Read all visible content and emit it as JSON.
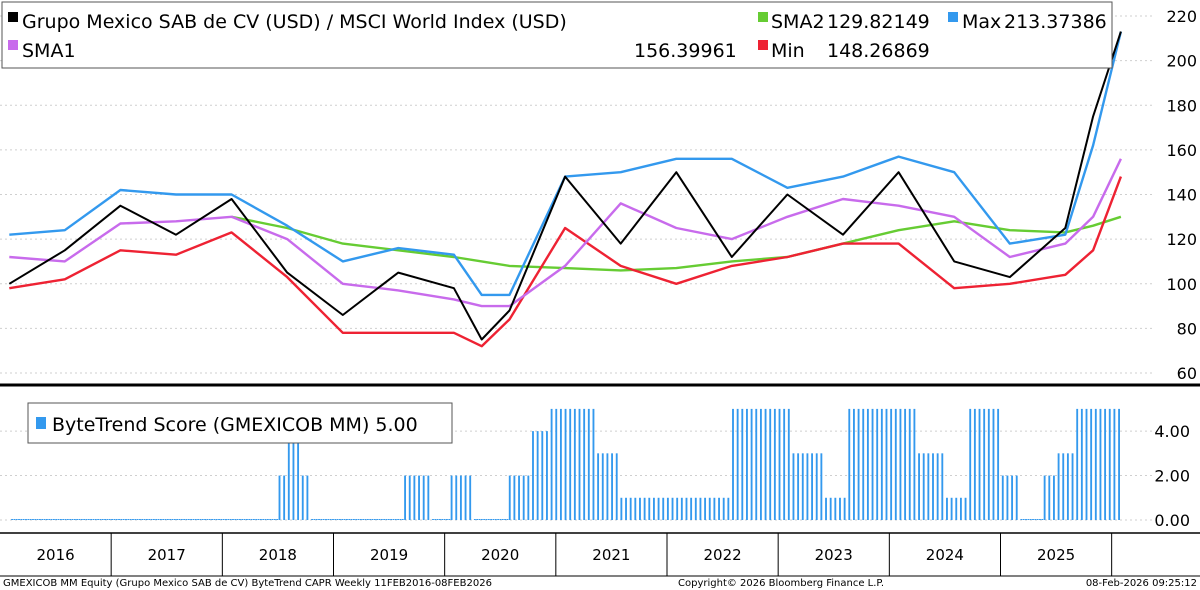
{
  "chart_data": [
    {
      "type": "line",
      "title": "Grupo Mexico SAB de CV (USD) / MSCI World Index (USD)",
      "ylim": [
        60,
        220
      ],
      "yticks": [
        60,
        80,
        100,
        120,
        140,
        160,
        180,
        200,
        220
      ],
      "grid": true,
      "legend_position": "top",
      "x_dates": [
        "2016-02",
        "2016-08",
        "2017-02",
        "2017-08",
        "2018-02",
        "2018-08",
        "2019-02",
        "2019-08",
        "2020-02",
        "2020-05",
        "2020-08",
        "2021-02",
        "2021-08",
        "2022-02",
        "2022-08",
        "2023-02",
        "2023-08",
        "2024-02",
        "2024-08",
        "2025-02",
        "2025-08",
        "2025-11",
        "2026-02"
      ],
      "series": [
        {
          "name": "Grupo Mexico SAB de CV (USD) / MSCI World Index (USD)",
          "color": "#000000",
          "last": "",
          "values": [
            100,
            115,
            135,
            122,
            138,
            105,
            86,
            105,
            98,
            75,
            88,
            148,
            118,
            150,
            112,
            140,
            122,
            150,
            110,
            103,
            125,
            175,
            213
          ]
        },
        {
          "name": "SMA1",
          "color": "#c86bec",
          "last": "156.39961",
          "values": [
            112,
            110,
            127,
            128,
            130,
            120,
            100,
            97,
            93,
            90,
            90,
            108,
            136,
            125,
            120,
            130,
            138,
            135,
            130,
            112,
            118,
            130,
            156
          ]
        },
        {
          "name": "SMA2",
          "color": "#66cc33",
          "last": "129.82149",
          "values": [
            null,
            null,
            null,
            null,
            130,
            125,
            118,
            115,
            112,
            110,
            108,
            107,
            106,
            107,
            110,
            112,
            118,
            124,
            128,
            124,
            123,
            126,
            130
          ]
        },
        {
          "name": "Min",
          "color": "#ee2233",
          "last": "148.26869",
          "values": [
            98,
            102,
            115,
            113,
            123,
            103,
            78,
            78,
            78,
            72,
            84,
            125,
            108,
            100,
            108,
            112,
            118,
            118,
            98,
            100,
            104,
            115,
            148
          ]
        },
        {
          "name": "Max",
          "color": "#3399ee",
          "last": "213.37386",
          "values": [
            122,
            124,
            142,
            140,
            140,
            126,
            110,
            116,
            113,
            95,
            95,
            148,
            150,
            156,
            156,
            143,
            148,
            157,
            150,
            118,
            122,
            162,
            213
          ]
        }
      ],
      "x_tick_labels": [
        "2016",
        "2017",
        "2018",
        "2019",
        "2020",
        "2021",
        "2022",
        "2023",
        "2024",
        "2025"
      ]
    },
    {
      "type": "bar",
      "title": "ByteTrend Score (GMEXICOB MM) 5.00",
      "ylim": [
        0,
        5.4
      ],
      "yticks": [
        "0.00",
        "2.00",
        "4.00"
      ],
      "color": "#3399ee",
      "grid": true,
      "weekly_runs": [
        {
          "weeks": 115,
          "value": 0
        },
        {
          "weeks": 4,
          "value": 2
        },
        {
          "weeks": 6,
          "value": 4
        },
        {
          "weeks": 4,
          "value": 2
        },
        {
          "weeks": 40,
          "value": 0
        },
        {
          "weeks": 12,
          "value": 2
        },
        {
          "weeks": 8,
          "value": 0
        },
        {
          "weeks": 10,
          "value": 2
        },
        {
          "weeks": 15,
          "value": 0
        },
        {
          "weeks": 10,
          "value": 2
        },
        {
          "weeks": 8,
          "value": 4
        },
        {
          "weeks": 20,
          "value": 5
        },
        {
          "weeks": 10,
          "value": 3
        },
        {
          "weeks": 8,
          "value": 1
        },
        {
          "weeks": 40,
          "value": 1
        },
        {
          "weeks": 26,
          "value": 5
        },
        {
          "weeks": 14,
          "value": 3
        },
        {
          "weeks": 10,
          "value": 1
        },
        {
          "weeks": 30,
          "value": 5
        },
        {
          "weeks": 12,
          "value": 3
        },
        {
          "weeks": 10,
          "value": 1
        },
        {
          "weeks": 14,
          "value": 5
        },
        {
          "weeks": 8,
          "value": 2
        },
        {
          "weeks": 10,
          "value": 0
        },
        {
          "weeks": 6,
          "value": 2
        },
        {
          "weeks": 8,
          "value": 3
        },
        {
          "weeks": 20,
          "value": 5
        }
      ]
    }
  ],
  "footer": {
    "left": "GMEXICOB MM Equity (Grupo Mexico SAB de CV) ByteTrend CAPR Weekly 11FEB2016-08FEB2026",
    "center": "Copyright© 2026 Bloomberg Finance L.P.",
    "right": "08-Feb-2026 09:25:12"
  }
}
